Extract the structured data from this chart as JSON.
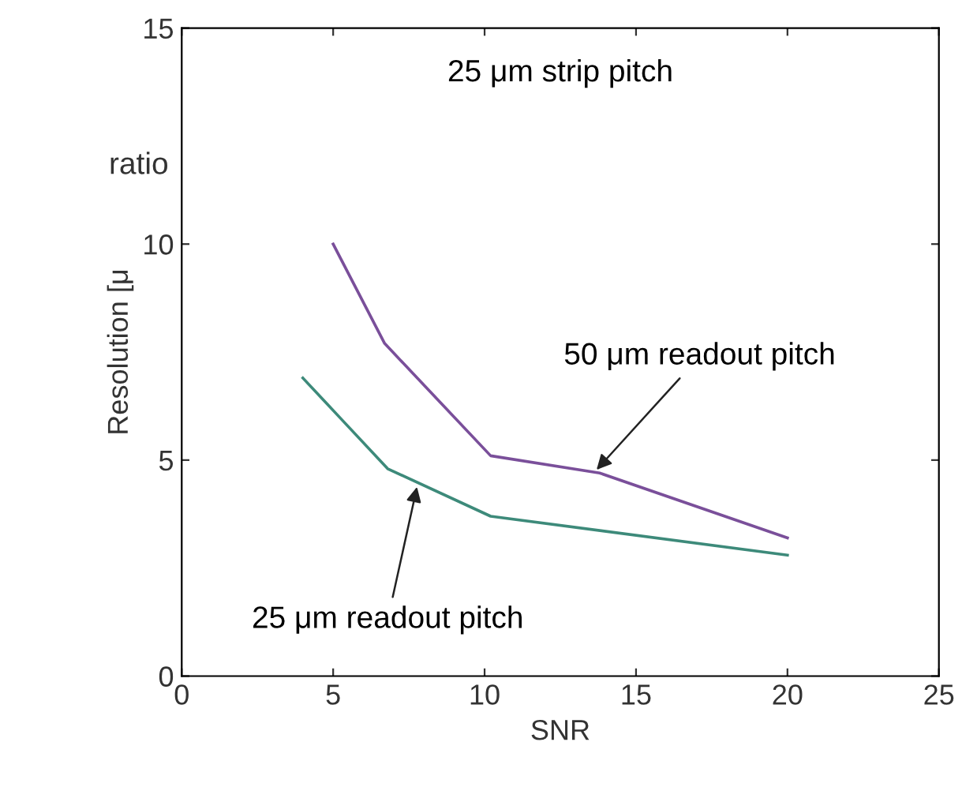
{
  "chart_data": {
    "type": "line",
    "xlabel": "SNR",
    "ylabel": "Resolution [μ",
    "xlim": [
      0,
      25
    ],
    "xticks": [
      0,
      5,
      10,
      15,
      20,
      25
    ],
    "ylim": [
      0,
      15
    ],
    "yticks": [
      0,
      5,
      10,
      15
    ],
    "series": [
      {
        "color": "#7a4f9a",
        "x": [
          5,
          6.7,
          10.2,
          13.8,
          20
        ],
        "values": [
          10,
          7.7,
          5.1,
          4.7,
          3.2
        ]
      },
      {
        "color": "#3d8a7a",
        "x": [
          4,
          5.2,
          6.8,
          10.2,
          20
        ],
        "values": [
          6.9,
          6.0,
          4.8,
          3.7,
          2.8
        ]
      }
    ],
    "annotations": [
      "25 μm strip pitch",
      {
        "text": "50 μm readout pitch",
        "x": 13.6,
        "y": 4.7
      },
      {
        "text": "25 μm readout pitch",
        "x": 7.8,
        "y": 4.48
      },
      "ratio"
    ],
    "grid": false,
    "legend": false,
    "marker": "none",
    "line_style": "solid"
  }
}
